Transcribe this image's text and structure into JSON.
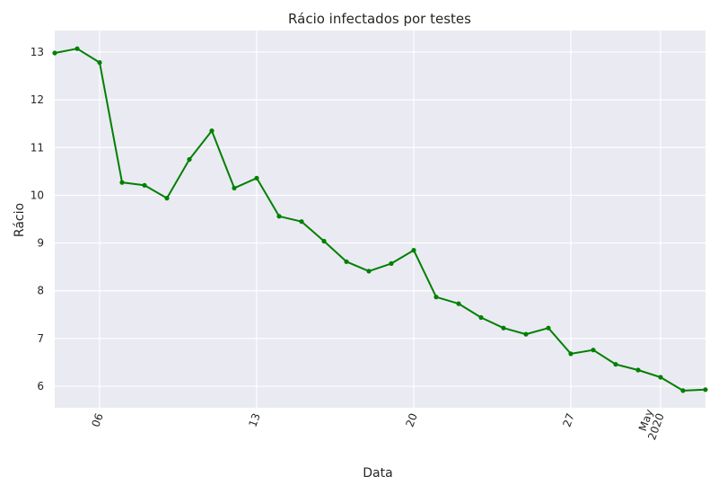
{
  "chart_data": {
    "type": "line",
    "title": "Rácio infectados por testes",
    "xlabel": "Data",
    "ylabel": "Rácio",
    "grid": true,
    "colors": {
      "line": "#008000",
      "background": "#eaeaf2",
      "grid": "#ffffff"
    },
    "xlim": [
      "2020-04-04",
      "2020-05-03"
    ],
    "ylim": [
      5.55,
      13.45
    ],
    "yticks": [
      6,
      7,
      8,
      9,
      10,
      11,
      12,
      13
    ],
    "xticks": [
      {
        "date": "2020-04-06",
        "label": "06"
      },
      {
        "date": "2020-04-13",
        "label": "13"
      },
      {
        "date": "2020-04-20",
        "label": "20"
      },
      {
        "date": "2020-04-27",
        "label": "27"
      },
      {
        "date": "2020-05-01",
        "label": "May\n2020"
      }
    ],
    "series": [
      {
        "x": [
          "2020-04-04",
          "2020-04-05",
          "2020-04-06",
          "2020-04-07",
          "2020-04-08",
          "2020-04-09",
          "2020-04-10",
          "2020-04-11",
          "2020-04-12",
          "2020-04-13",
          "2020-04-14",
          "2020-04-15",
          "2020-04-16",
          "2020-04-17",
          "2020-04-18",
          "2020-04-19",
          "2020-04-20",
          "2020-04-21",
          "2020-04-22",
          "2020-04-23",
          "2020-04-24",
          "2020-04-25",
          "2020-04-26",
          "2020-04-27",
          "2020-04-28",
          "2020-04-29",
          "2020-04-30",
          "2020-05-01",
          "2020-05-02",
          "2020-05-03"
        ],
        "y": [
          12.98,
          13.07,
          12.78,
          10.27,
          10.21,
          9.94,
          10.75,
          11.35,
          10.15,
          10.36,
          9.56,
          9.45,
          9.04,
          8.61,
          8.41,
          8.57,
          8.85,
          7.87,
          7.73,
          7.44,
          7.22,
          7.09,
          7.22,
          6.68,
          6.76,
          6.46,
          6.34,
          6.19,
          5.91,
          5.93
        ]
      }
    ]
  }
}
